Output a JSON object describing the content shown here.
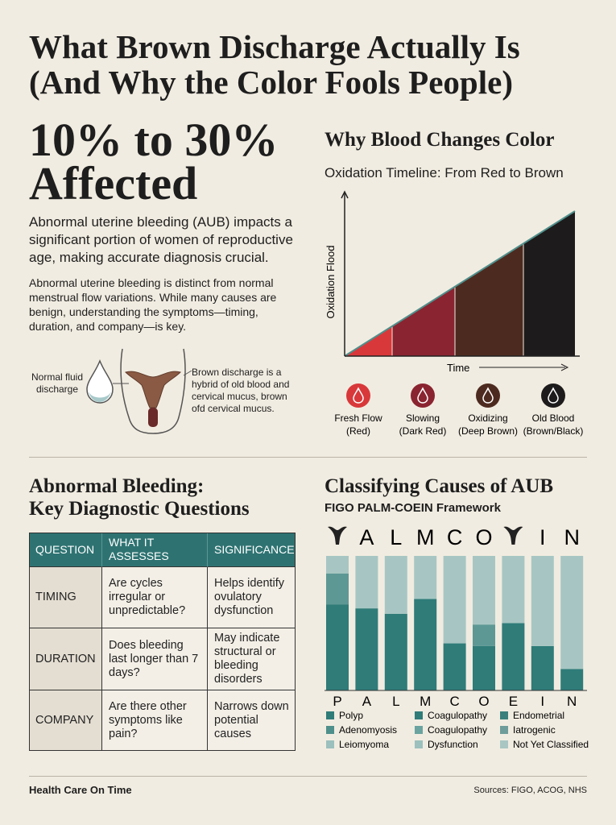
{
  "header": {
    "title_lines": [
      "What Brown Discharge Actually Is",
      "(And Why the Color Fools People)"
    ]
  },
  "stat": {
    "lines": [
      "10% to 30%",
      "Affected"
    ]
  },
  "intro": {
    "lead": "Abnormal uterine bleeding (AUB) impacts a significant portion of women of reproductive age, making accurate diagnosis crucial.",
    "body": "Abnormal uterine bleeding is distinct from normal menstrual flow variations. While many causes are benign, understanding the symptoms—timing, duration, and company—is key."
  },
  "diagram": {
    "left_label": "Normal fluid discharge",
    "right_label": "Brown discharge is a hybrid of old blood and cervical mucus, brown ofd cervical mucus."
  },
  "oxidation": {
    "title": "Why Blood Changes Color",
    "subtitle": "Oxidation Timeline: From Red to Brown",
    "y_label": "Oxidation Flood",
    "x_label": "Time",
    "stages": [
      {
        "name": "Fresh Flow",
        "note": "(Red)",
        "color": "#d8383a"
      },
      {
        "name": "Slowing",
        "note": "(Dark Red)",
        "color": "#8a2430"
      },
      {
        "name": "Oxidizing",
        "note": "(Deep Brown)",
        "color": "#4d2a1f"
      },
      {
        "name": "Old Blood",
        "note": "(Brown/Black)",
        "color": "#1d1b1b"
      }
    ]
  },
  "questions": {
    "title_lines": [
      "Abnormal Bleeding:",
      "Key Diagnostic Questions"
    ],
    "table": {
      "header": [
        "QUESTION",
        "WHAT IT ASSESSES",
        "SIGNIFICANCE"
      ],
      "rows": [
        [
          "TIMING",
          "Are cycles irregular or unpredictable?",
          "Helps identify ovulatory dysfunction"
        ],
        [
          "DURATION",
          "Does bleeding last longer than 7 days?",
          "May indicate structural or bleeding disorders"
        ],
        [
          "COMPANY",
          "Are there other symptoms like pain?",
          "Narrows down potential causes"
        ]
      ]
    }
  },
  "chart_data": {
    "type": "bar",
    "stacked": true,
    "title": "Classifying Causes of AUB",
    "subtitle": "FIGO PALM-COEIN Framework",
    "top_labels": [
      null,
      "A",
      "L",
      "M",
      "C",
      "O",
      null,
      "I",
      "N"
    ],
    "categories": [
      "P",
      "A",
      "L",
      "M",
      "C",
      "O",
      "E",
      "I",
      "N"
    ],
    "ylim": [
      0,
      100
    ],
    "series": [
      {
        "color": "#2f7c79",
        "values": [
          64,
          61,
          57,
          68,
          35,
          33,
          50,
          33,
          16
        ]
      },
      {
        "color": "#5d9895",
        "values": [
          23,
          0,
          0,
          0,
          0,
          16,
          0,
          0,
          0
        ]
      },
      {
        "color": "#a7c6c3",
        "values": [
          13,
          39,
          43,
          32,
          65,
          51,
          50,
          67,
          84
        ]
      }
    ],
    "legend": [
      {
        "label": "Polyp",
        "color": "#2f7c79"
      },
      {
        "label": "Adenomyosis",
        "color": "#4f8f8c"
      },
      {
        "label": "Leiomyoma",
        "color": "#9cc0bd"
      },
      {
        "label": "Coagulopathy",
        "color": "#2f7c79"
      },
      {
        "label": "Coagulopathy",
        "color": "#6aa3a0"
      },
      {
        "label": "Dysfunction",
        "color": "#9cc0bd"
      },
      {
        "label": "Endometrial",
        "color": "#3a7f7c"
      },
      {
        "label": "Iatrogenic",
        "color": "#6f9d9b"
      },
      {
        "label": "Not Yet Classified",
        "color": "#a9c6c3"
      }
    ]
  },
  "footer": {
    "brand": "Health Care On Time",
    "sources": "Sources: FIGO, ACOG, NHS"
  }
}
